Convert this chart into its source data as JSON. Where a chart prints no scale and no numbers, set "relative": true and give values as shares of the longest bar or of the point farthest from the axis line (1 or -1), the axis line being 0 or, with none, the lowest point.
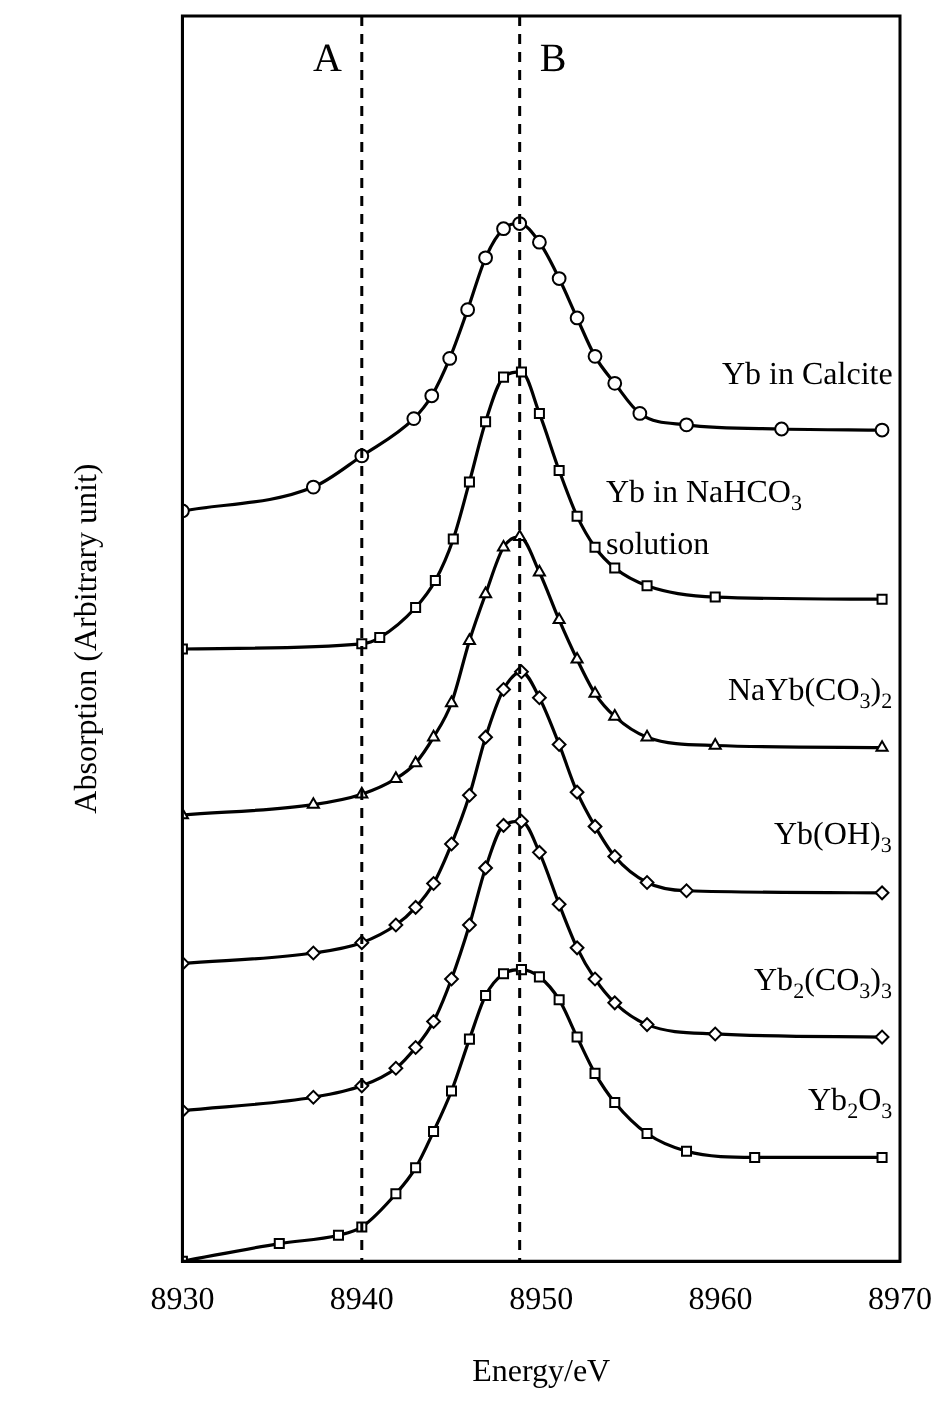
{
  "chart_data": {
    "type": "line",
    "xlabel": "Energy/eV",
    "ylabel": "Absorption (Arbitrary unit)",
    "relative": true,
    "xlim": [
      8930,
      8970
    ],
    "xticks": [
      8930,
      8940,
      8950,
      8960,
      8970
    ],
    "grid": false,
    "legend": false,
    "line_style": "solid",
    "ref_lines": [
      {
        "axis": "x",
        "value": 8940,
        "label": "A",
        "line_style": "dashed",
        "color": "#000000"
      },
      {
        "axis": "x",
        "value": 8948.8,
        "label": "B",
        "line_style": "dashed",
        "color": "#000000"
      }
    ],
    "series": [
      {
        "name": "Yb in Calcite",
        "color": "#000000",
        "marker": "circle",
        "x": [
          8930,
          8937.3,
          8940,
          8942.9,
          8943.9,
          8944.9,
          8945.9,
          8946.9,
          8947.9,
          8948.8,
          8949.9,
          8951,
          8952,
          8953,
          8954.1,
          8955.5,
          8958.1,
          8963.4,
          8969
        ],
        "values": [
          0.723,
          0.746,
          0.776,
          0.812,
          0.834,
          0.87,
          0.917,
          0.967,
          0.995,
          1.0,
          0.982,
          0.947,
          0.909,
          0.872,
          0.846,
          0.817,
          0.806,
          0.802,
          0.801
        ]
      },
      {
        "name": "Yb in NaHCO$_{3}$ solution",
        "color": "#000000",
        "marker": "square",
        "x": [
          8930,
          8940,
          8941,
          8943,
          8944.1,
          8945.1,
          8946,
          8946.9,
          8947.9,
          8948.9,
          8949.9,
          8951,
          8952,
          8953,
          8954.1,
          8955.9,
          8959.7,
          8969
        ],
        "values": [
          0.59,
          0.595,
          0.601,
          0.63,
          0.656,
          0.696,
          0.751,
          0.809,
          0.852,
          0.857,
          0.817,
          0.762,
          0.718,
          0.688,
          0.668,
          0.651,
          0.64,
          0.638
        ]
      },
      {
        "name": "NaYb(CO$_{3}$)$_{2}$",
        "color": "#000000",
        "marker": "triangle",
        "x": [
          8930,
          8937.3,
          8940,
          8941.9,
          8943,
          8944,
          8945,
          8946,
          8946.9,
          8947.9,
          8948.8,
          8949.9,
          8951,
          8952,
          8953,
          8954.1,
          8955.9,
          8959.7,
          8969
        ],
        "values": [
          0.43,
          0.44,
          0.45,
          0.465,
          0.48,
          0.505,
          0.538,
          0.598,
          0.643,
          0.688,
          0.698,
          0.664,
          0.618,
          0.58,
          0.547,
          0.525,
          0.505,
          0.497,
          0.495
        ]
      },
      {
        "name": "Yb(OH)$_{3}$",
        "color": "#000000",
        "marker": "diamond",
        "x": [
          8930,
          8937.3,
          8940,
          8941.9,
          8943,
          8944,
          8945,
          8946,
          8946.9,
          8947.9,
          8948.9,
          8949.9,
          8951,
          8952,
          8953,
          8954.1,
          8955.9,
          8958.1,
          8969
        ],
        "values": [
          0.287,
          0.297,
          0.307,
          0.324,
          0.341,
          0.364,
          0.402,
          0.449,
          0.505,
          0.551,
          0.568,
          0.543,
          0.498,
          0.452,
          0.419,
          0.39,
          0.365,
          0.357,
          0.355
        ]
      },
      {
        "name": "Yb$_{2}$(CO$_{3}$)$_{3}$",
        "color": "#000000",
        "marker": "diamond",
        "x": [
          8930,
          8937.3,
          8940,
          8941.9,
          8943,
          8944,
          8945,
          8946,
          8946.9,
          8947.9,
          8948.9,
          8949.9,
          8951,
          8952,
          8953,
          8954.1,
          8955.9,
          8959.7,
          8969
        ],
        "values": [
          0.145,
          0.158,
          0.169,
          0.186,
          0.206,
          0.231,
          0.272,
          0.324,
          0.379,
          0.42,
          0.424,
          0.394,
          0.344,
          0.302,
          0.272,
          0.249,
          0.228,
          0.219,
          0.216
        ]
      },
      {
        "name": "Yb$_{2}$O$_{3}$",
        "color": "#000000",
        "marker": "square",
        "x": [
          8930,
          8935.4,
          8938.7,
          8940,
          8941.9,
          8943,
          8944,
          8945,
          8946,
          8946.9,
          8947.9,
          8948.9,
          8949.9,
          8951,
          8952,
          8953,
          8954.1,
          8955.9,
          8958.1,
          8961.9,
          8969
        ],
        "values": [
          0,
          0.017,
          0.025,
          0.033,
          0.065,
          0.09,
          0.125,
          0.164,
          0.214,
          0.256,
          0.277,
          0.281,
          0.274,
          0.252,
          0.216,
          0.181,
          0.153,
          0.123,
          0.106,
          0.1,
          0.1
        ]
      }
    ]
  }
}
